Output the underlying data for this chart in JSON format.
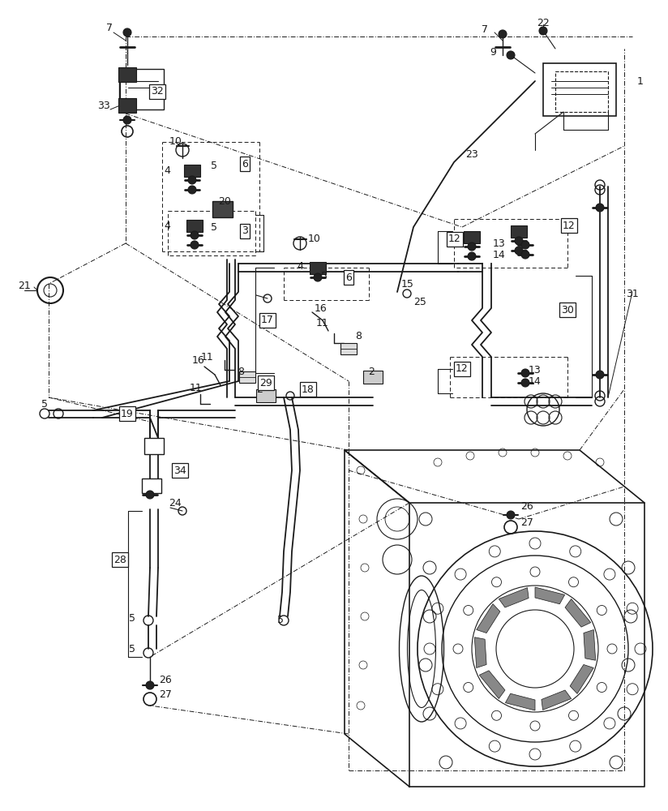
{
  "background_color": "#ffffff",
  "line_color": "#1a1a1a",
  "fig_width": 8.24,
  "fig_height": 10.0,
  "dpi": 100
}
